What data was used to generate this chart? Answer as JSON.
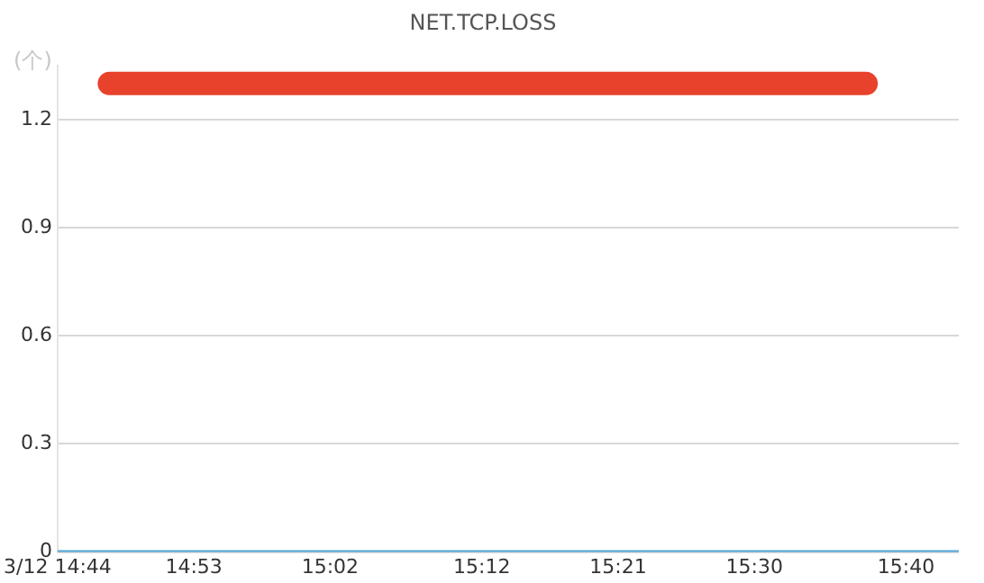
{
  "chart_data": {
    "type": "line",
    "title": "NET.TCP.LOSS",
    "ylabel": "(个)",
    "series": [
      {
        "color": "#e8412c",
        "x": [
          14.79,
          15.623
        ],
        "values": [
          1.3,
          1.3
        ]
      },
      {
        "color": "#4ea6d8",
        "x": [
          14.733,
          15.725
        ],
        "values": [
          0,
          0
        ]
      }
    ],
    "xlim": [
      14.733,
      15.725
    ],
    "xticks": [
      {
        "value": 14.733,
        "label": "3/12 14:44"
      },
      {
        "value": 14.883,
        "label": "14:53"
      },
      {
        "value": 15.033,
        "label": "15:02"
      },
      {
        "value": 15.2,
        "label": "15:12"
      },
      {
        "value": 15.35,
        "label": "15:21"
      },
      {
        "value": 15.5,
        "label": "15:30"
      },
      {
        "value": 15.667,
        "label": "15:40"
      }
    ],
    "ylim": [
      0,
      1.35
    ],
    "yticks": [
      0,
      0.3,
      0.6,
      0.9,
      1.2
    ],
    "grid": "y",
    "legend": false,
    "marker": "none",
    "line_style": "solid"
  }
}
